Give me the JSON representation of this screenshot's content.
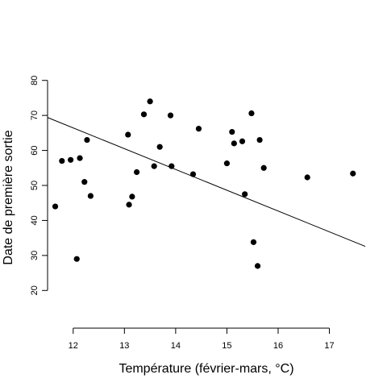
{
  "chart_data": {
    "type": "scatter",
    "xlabel": "Température (février-mars, °C)",
    "ylabel": "Date de première sortie",
    "xlim": [
      11.5,
      17.7
    ],
    "ylim": [
      15,
      85
    ],
    "x_ticks": [
      12,
      13,
      14,
      15,
      16,
      17
    ],
    "y_ticks": [
      20,
      30,
      40,
      50,
      60,
      70,
      80
    ],
    "grid": false,
    "points": [
      {
        "x": 11.65,
        "y": 44
      },
      {
        "x": 11.78,
        "y": 57
      },
      {
        "x": 11.95,
        "y": 57.3
      },
      {
        "x": 12.07,
        "y": 29
      },
      {
        "x": 12.13,
        "y": 57.8
      },
      {
        "x": 12.22,
        "y": 51
      },
      {
        "x": 12.27,
        "y": 63
      },
      {
        "x": 12.34,
        "y": 47
      },
      {
        "x": 13.07,
        "y": 64.5
      },
      {
        "x": 13.09,
        "y": 44.5
      },
      {
        "x": 13.15,
        "y": 46.8
      },
      {
        "x": 13.24,
        "y": 53.8
      },
      {
        "x": 13.38,
        "y": 70.3
      },
      {
        "x": 13.5,
        "y": 74
      },
      {
        "x": 13.58,
        "y": 55.5
      },
      {
        "x": 13.69,
        "y": 61
      },
      {
        "x": 13.9,
        "y": 70
      },
      {
        "x": 13.92,
        "y": 55.5
      },
      {
        "x": 14.34,
        "y": 53.2
      },
      {
        "x": 14.45,
        "y": 66.2
      },
      {
        "x": 15.0,
        "y": 56.3
      },
      {
        "x": 15.1,
        "y": 65.3
      },
      {
        "x": 15.14,
        "y": 62
      },
      {
        "x": 15.3,
        "y": 62.6
      },
      {
        "x": 15.35,
        "y": 47.5
      },
      {
        "x": 15.48,
        "y": 70.6
      },
      {
        "x": 15.52,
        "y": 33.8
      },
      {
        "x": 15.6,
        "y": 27
      },
      {
        "x": 15.64,
        "y": 63
      },
      {
        "x": 15.72,
        "y": 55
      },
      {
        "x": 16.57,
        "y": 52.3
      },
      {
        "x": 17.46,
        "y": 53.4
      }
    ],
    "fit_line": {
      "x": [
        11.5,
        17.7
      ],
      "y": [
        69.4,
        32.6
      ]
    }
  }
}
